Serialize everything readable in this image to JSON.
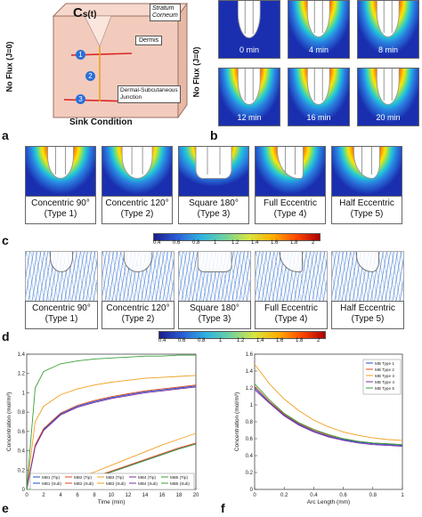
{
  "panel_a": {
    "letter": "a",
    "cs_label": "C",
    "cs_sub": "s(t)",
    "stratum_corneum": "Stratum\nCorneum",
    "dermis": "Dermis",
    "junction": "Dermal-Subcutaneous\nJunction",
    "no_flux_left": "No Flux (J=0)",
    "no_flux_right": "No Flux (J=0)",
    "sink": "Sink Condition",
    "markers": [
      "1",
      "2",
      "3"
    ]
  },
  "panel_b": {
    "letter": "b",
    "times": [
      "0 min",
      "4 min",
      "8 min",
      "12 min",
      "16 min",
      "20 min"
    ]
  },
  "panel_c": {
    "letter": "c",
    "types": [
      {
        "name": "Concentric 90°",
        "type": "(Type 1)"
      },
      {
        "name": "Concentric 120°",
        "type": "(Type 2)"
      },
      {
        "name": "Square 180°",
        "type": "(Type 3)"
      },
      {
        "name": "Full Eccentric",
        "type": "(Type 4)"
      },
      {
        "name": "Half Eccentric",
        "type": "(Type 5)"
      }
    ],
    "colorbar_ticks": [
      "0.4",
      "0.6",
      "0.8",
      "1",
      "1.2",
      "1.4",
      "1.6",
      "1.8",
      "2"
    ]
  },
  "panel_d": {
    "letter": "d",
    "types": [
      {
        "name": "Concentric 90°",
        "type": "(Type 1)"
      },
      {
        "name": "Concentric 120°",
        "type": "(Type 2)"
      },
      {
        "name": "Square 180°",
        "type": "(Type 3)"
      },
      {
        "name": "Full Eccentric",
        "type": "(Type 4)"
      },
      {
        "name": "Half Eccentric",
        "type": "(Type 5)"
      }
    ],
    "colorbar_ticks": [
      "0.4",
      "0.6",
      "0.8",
      "1",
      "1.2",
      "1.4",
      "1.6",
      "1.8",
      "2"
    ]
  },
  "panel_e_letter": "e",
  "panel_f_letter": "f",
  "chart_data": [
    {
      "type": "line",
      "xlabel": "Time (min)",
      "ylabel": "Concentration (mol/m³)",
      "xlim": [
        0,
        20
      ],
      "ylim": [
        0,
        1.4
      ],
      "xticks": [
        0,
        2,
        4,
        6,
        8,
        10,
        12,
        14,
        16,
        18,
        20
      ],
      "yticks": [
        0,
        0.2,
        0.4,
        0.6,
        0.8,
        1,
        1.2,
        1.4
      ],
      "x": [
        0,
        1,
        2,
        4,
        6,
        8,
        10,
        12,
        14,
        16,
        18,
        20
      ],
      "legend_position": "bottom-left",
      "series": [
        {
          "name": "MB1 (Tip)",
          "color": "#1f4fd1",
          "values": [
            0,
            0.45,
            0.62,
            0.78,
            0.86,
            0.91,
            0.95,
            0.98,
            1.01,
            1.03,
            1.05,
            1.07
          ]
        },
        {
          "name": "MB1 (Sub)",
          "color": "#1f4fd1",
          "values": [
            0,
            0.0,
            0.01,
            0.04,
            0.08,
            0.13,
            0.18,
            0.24,
            0.3,
            0.36,
            0.42,
            0.47
          ]
        },
        {
          "name": "MB2 (Tip)",
          "color": "#e04a1e",
          "values": [
            0,
            0.46,
            0.63,
            0.79,
            0.87,
            0.92,
            0.96,
            0.99,
            1.02,
            1.04,
            1.06,
            1.08
          ]
        },
        {
          "name": "MB2 (Sub)",
          "color": "#e04a1e",
          "values": [
            0,
            0.0,
            0.01,
            0.04,
            0.08,
            0.13,
            0.19,
            0.25,
            0.31,
            0.37,
            0.43,
            0.48
          ]
        },
        {
          "name": "MB3 (Tip)",
          "color": "#f0a020",
          "values": [
            0,
            0.7,
            0.86,
            0.98,
            1.04,
            1.08,
            1.11,
            1.13,
            1.15,
            1.16,
            1.17,
            1.18
          ]
        },
        {
          "name": "MB3 (Sub)",
          "color": "#f0a020",
          "values": [
            0,
            0.0,
            0.02,
            0.06,
            0.12,
            0.18,
            0.25,
            0.32,
            0.39,
            0.46,
            0.52,
            0.58
          ]
        },
        {
          "name": "MB4 (Tip)",
          "color": "#7a2fa0",
          "values": [
            0,
            0.44,
            0.61,
            0.77,
            0.85,
            0.9,
            0.94,
            0.97,
            1.0,
            1.02,
            1.04,
            1.06
          ]
        },
        {
          "name": "MB4 (Sub)",
          "color": "#7a2fa0",
          "values": [
            0,
            0.0,
            0.01,
            0.04,
            0.08,
            0.13,
            0.18,
            0.24,
            0.3,
            0.36,
            0.42,
            0.47
          ]
        },
        {
          "name": "MB5 (Tip)",
          "color": "#3aa03a",
          "values": [
            0,
            1.05,
            1.22,
            1.3,
            1.33,
            1.35,
            1.36,
            1.37,
            1.38,
            1.38,
            1.39,
            1.39
          ]
        },
        {
          "name": "MB5 (Sub)",
          "color": "#3aa03a",
          "values": [
            0,
            0.0,
            0.01,
            0.04,
            0.08,
            0.13,
            0.18,
            0.24,
            0.3,
            0.36,
            0.42,
            0.47
          ]
        }
      ]
    },
    {
      "type": "line",
      "xlabel": "Arc Length (mm)",
      "ylabel": "Concentration (mol/m³)",
      "xlim": [
        0,
        1
      ],
      "ylim": [
        0,
        1.6
      ],
      "xticks": [
        0,
        0.2,
        0.4,
        0.6,
        0.8,
        1
      ],
      "yticks": [
        0,
        0.2,
        0.4,
        0.6,
        0.8,
        1,
        1.2,
        1.4,
        1.6
      ],
      "x": [
        0,
        0.1,
        0.2,
        0.3,
        0.4,
        0.5,
        0.6,
        0.7,
        0.8,
        0.9,
        1.0
      ],
      "legend_position": "top-right",
      "series": [
        {
          "name": "MB Type 1",
          "color": "#1f4fd1",
          "values": [
            1.2,
            1.03,
            0.88,
            0.77,
            0.69,
            0.63,
            0.59,
            0.56,
            0.54,
            0.53,
            0.52
          ]
        },
        {
          "name": "MB Type 2",
          "color": "#e04a1e",
          "values": [
            1.22,
            1.04,
            0.89,
            0.78,
            0.7,
            0.64,
            0.6,
            0.57,
            0.55,
            0.54,
            0.53
          ]
        },
        {
          "name": "MB Type 3",
          "color": "#f0a020",
          "values": [
            1.48,
            1.25,
            1.07,
            0.93,
            0.82,
            0.74,
            0.68,
            0.64,
            0.61,
            0.59,
            0.58
          ]
        },
        {
          "name": "MB Type 4",
          "color": "#7a2fa0",
          "values": [
            1.18,
            1.02,
            0.87,
            0.76,
            0.68,
            0.62,
            0.58,
            0.55,
            0.53,
            0.52,
            0.51
          ]
        },
        {
          "name": "MB Type 5",
          "color": "#3aa03a",
          "values": [
            1.25,
            1.06,
            0.9,
            0.79,
            0.71,
            0.65,
            0.6,
            0.57,
            0.55,
            0.54,
            0.53
          ]
        }
      ]
    }
  ]
}
